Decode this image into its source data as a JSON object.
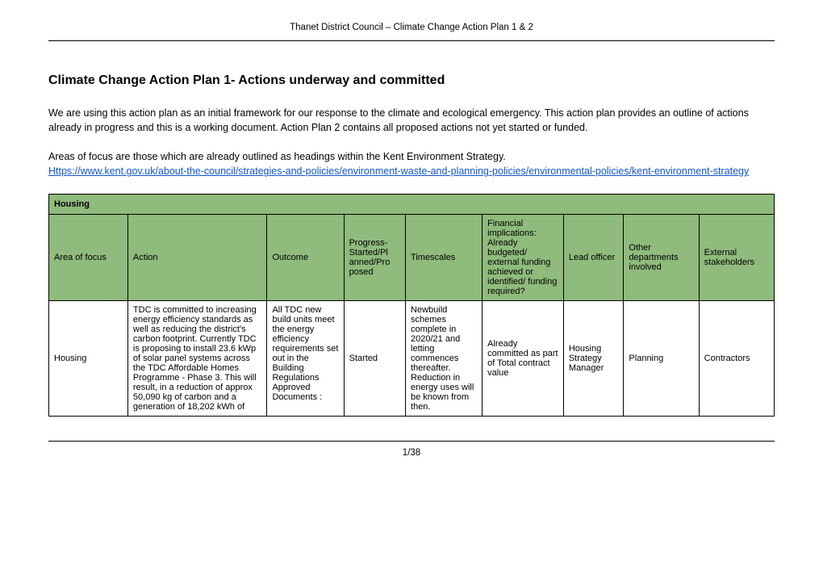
{
  "header": "Thanet District Council – Climate Change Action Plan 1 & 2",
  "title": "Climate Change Action Plan 1- Actions underway and committed",
  "para1": "We are using this action plan as an initial  framework for our response to the climate and ecological emergency. This action plan provides an outline of actions already in progress and this is a working document. Action Plan 2 contains all proposed actions not yet started or funded.",
  "para2_text": "Areas of focus are those which are already outlined as headings within the Kent Environment Strategy.",
  "link_url": "Https://www.kent.gov.uk/about-the-council/strategies-and-policies/environment-waste-and-planning-policies/environmental-policies/kent-environment-strategy",
  "section_label": "Housing",
  "columns": [
    "Area of focus",
    "Action",
    "Outcome",
    "Progress- Started/Pl anned/Pro posed",
    "Timescales",
    "Financial implications: Already budgeted/ external funding achieved or identified/ funding required?",
    "Lead officer",
    "Other departments involved",
    "External stakeholders"
  ],
  "row": {
    "c0": "Housing",
    "c1": "TDC is committed to increasing energy efficiency standards as well as reducing the district's carbon footprint. Currently TDC is proposing to install 23.6 kWp of solar panel systems across the TDC Affordable Homes Programme - Phase 3.  This will result, in a reduction of approx 50,090 kg of carbon and a generation of 18,202 kWh of",
    "c2": "All TDC new build units meet the energy efficiency requirements set out in the Building Regulations Approved Documents :",
    "c3": "Started",
    "c4": "Newbuild schemes complete in 2020/21 and letting commences thereafter. Reduction in energy uses will be known from then.",
    "c5": "Already committed as part of Total contract value",
    "c6": "Housing Strategy Manager",
    "c7": "Planning",
    "c8": "Contractors"
  },
  "footer": "1/38",
  "colors": {
    "header_bg": "#8fbb7c",
    "link": "#1155cc"
  }
}
